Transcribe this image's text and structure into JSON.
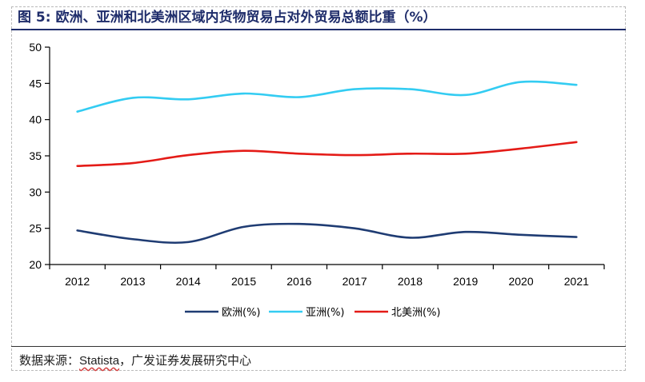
{
  "figure": {
    "title": "图 5: 欧洲、亚洲和北美洲区域内货物贸易占对外贸易总额比重（%）",
    "source_prefix": "数据来源：",
    "source_brand": "Statista",
    "source_suffix": "，广发证券发展研究中心"
  },
  "chart_data": {
    "type": "line",
    "title": "图 5: 欧洲、亚洲和北美洲区域内货物贸易占对外贸易总额比重（%）",
    "x": [
      "2012",
      "2013",
      "2014",
      "2015",
      "2016",
      "2017",
      "2018",
      "2019",
      "2020",
      "2021"
    ],
    "ylim": [
      20,
      50
    ],
    "yticks": [
      20,
      25,
      30,
      35,
      40,
      45,
      50
    ],
    "grid": false,
    "legend_position": "bottom",
    "series": [
      {
        "name": "欧洲(%)",
        "color": "#1f3c73",
        "values": [
          24.7,
          23.5,
          23.1,
          25.2,
          25.6,
          25.0,
          23.7,
          24.5,
          24.1,
          23.8
        ]
      },
      {
        "name": "亚洲(%)",
        "color": "#33ccf2",
        "values": [
          41.1,
          43.0,
          42.8,
          43.6,
          43.1,
          44.2,
          44.2,
          43.4,
          45.2,
          44.8
        ]
      },
      {
        "name": "北美洲(%)",
        "color": "#e41b17",
        "values": [
          33.6,
          34.0,
          35.1,
          35.7,
          35.3,
          35.1,
          35.3,
          35.3,
          36.0,
          36.9
        ]
      }
    ]
  }
}
